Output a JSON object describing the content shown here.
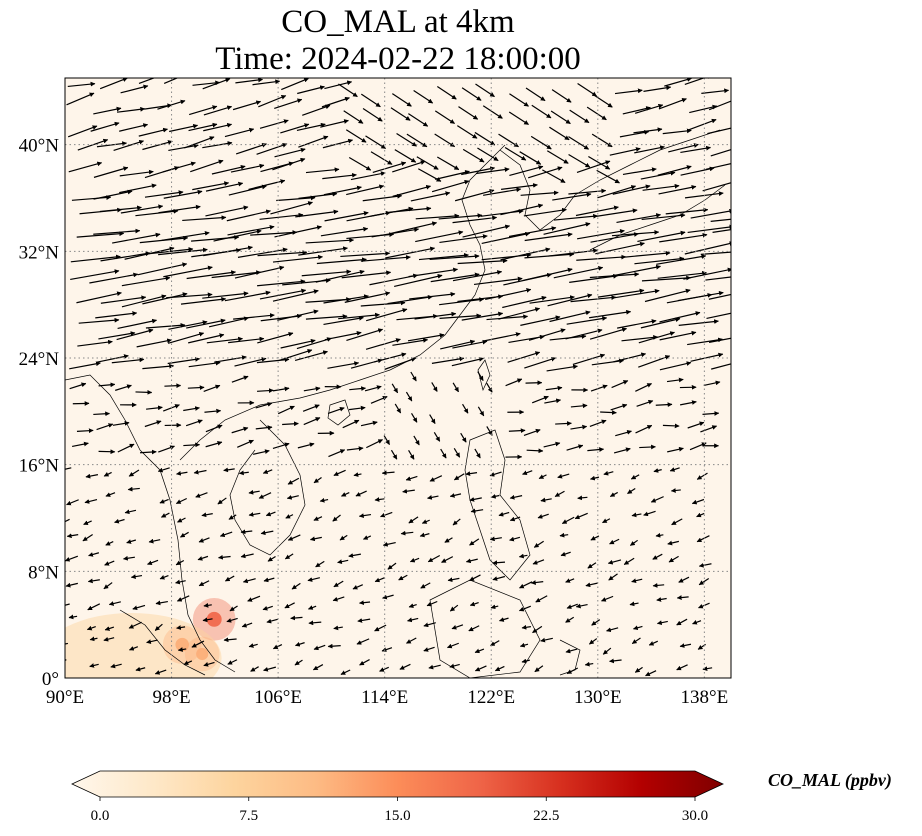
{
  "title_line1": "CO_MAL at 4km",
  "title_line2": "Time: 2024-02-22 18:00:00",
  "map": {
    "projection": "PlateCarree",
    "lon_range": [
      90,
      140
    ],
    "lat_range": [
      0,
      45
    ],
    "lon_ticks": [
      {
        "value": 90,
        "label": "90°E"
      },
      {
        "value": 98,
        "label": "98°E"
      },
      {
        "value": 106,
        "label": "106°E"
      },
      {
        "value": 114,
        "label": "114°E"
      },
      {
        "value": 122,
        "label": "122°E"
      },
      {
        "value": 130,
        "label": "130°E"
      },
      {
        "value": 138,
        "label": "138°E"
      }
    ],
    "lat_ticks": [
      {
        "value": 0,
        "label": "0°"
      },
      {
        "value": 8,
        "label": "8°N"
      },
      {
        "value": 16,
        "label": "16°N"
      },
      {
        "value": 24,
        "label": "24°N"
      },
      {
        "value": 32,
        "label": "32°N"
      },
      {
        "value": 40,
        "label": "40°N"
      }
    ],
    "gridlines": "dotted",
    "background_color": "#fef5ea",
    "wind_vectors": "black quiver arrows (strong westerly jet 24-40°N, weak easterlies south of 16°N)",
    "co_hotspots": [
      {
        "lon": 98.8,
        "lat": 2.5,
        "value": 14
      },
      {
        "lon": 101.2,
        "lat": 4.4,
        "value": 17
      },
      {
        "lon": 100.3,
        "lat": 1.8,
        "value": 11
      }
    ]
  },
  "colorbar": {
    "label": "CO_MAL (ppbv)",
    "colormap": "OrRd",
    "min": 0.0,
    "max": 30.0,
    "extend": "both",
    "ticks": [
      "0.0",
      "7.5",
      "15.0",
      "22.5",
      "30.0"
    ],
    "colors": [
      "#fff7ec",
      "#fee8c8",
      "#fdd49e",
      "#fdbb84",
      "#fc8d59",
      "#ef6548",
      "#d7301f",
      "#b30000",
      "#7f0000"
    ]
  }
}
